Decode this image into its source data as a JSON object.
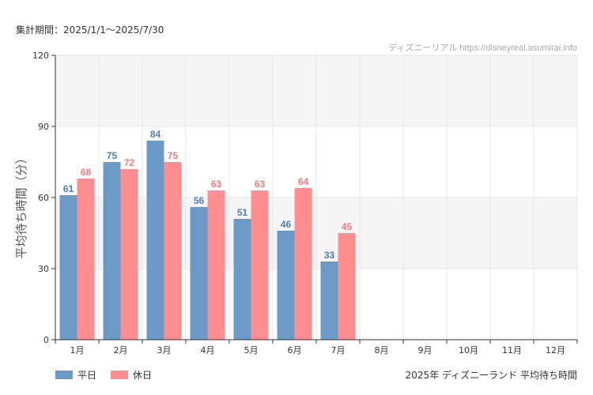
{
  "header": {
    "period_label": "集計期間：2025/1/1～2025/7/30",
    "watermark": "ディズニーリアル https://disneyreal.asumirai.info"
  },
  "footer": {
    "caption": "2025年 ディズニーランド 平均待ち時間"
  },
  "colors": {
    "weekday": "#6b9ac7",
    "holiday": "#ff8e91",
    "weekday_label": "#4f7fb0",
    "holiday_label": "#f27b80",
    "band": "#f5f5f5",
    "grid": "#e6e6e6",
    "axis": "#333333"
  },
  "chart_data": {
    "type": "bar",
    "title": "2025年 ディズニーランド 平均待ち時間",
    "xlabel": "",
    "ylabel": "平均待ち時間（分）",
    "ylim": [
      0,
      120
    ],
    "yticks": [
      0,
      30,
      60,
      90,
      120
    ],
    "categories": [
      "1月",
      "2月",
      "3月",
      "4月",
      "5月",
      "6月",
      "7月",
      "8月",
      "9月",
      "10月",
      "11月",
      "12月"
    ],
    "series": [
      {
        "name": "平日",
        "values": [
          61,
          75,
          84,
          56,
          51,
          46,
          33,
          null,
          null,
          null,
          null,
          null
        ]
      },
      {
        "name": "休日",
        "values": [
          68,
          72,
          75,
          63,
          63,
          64,
          45,
          null,
          null,
          null,
          null,
          null
        ]
      }
    ],
    "legend_position": "bottom-left"
  }
}
